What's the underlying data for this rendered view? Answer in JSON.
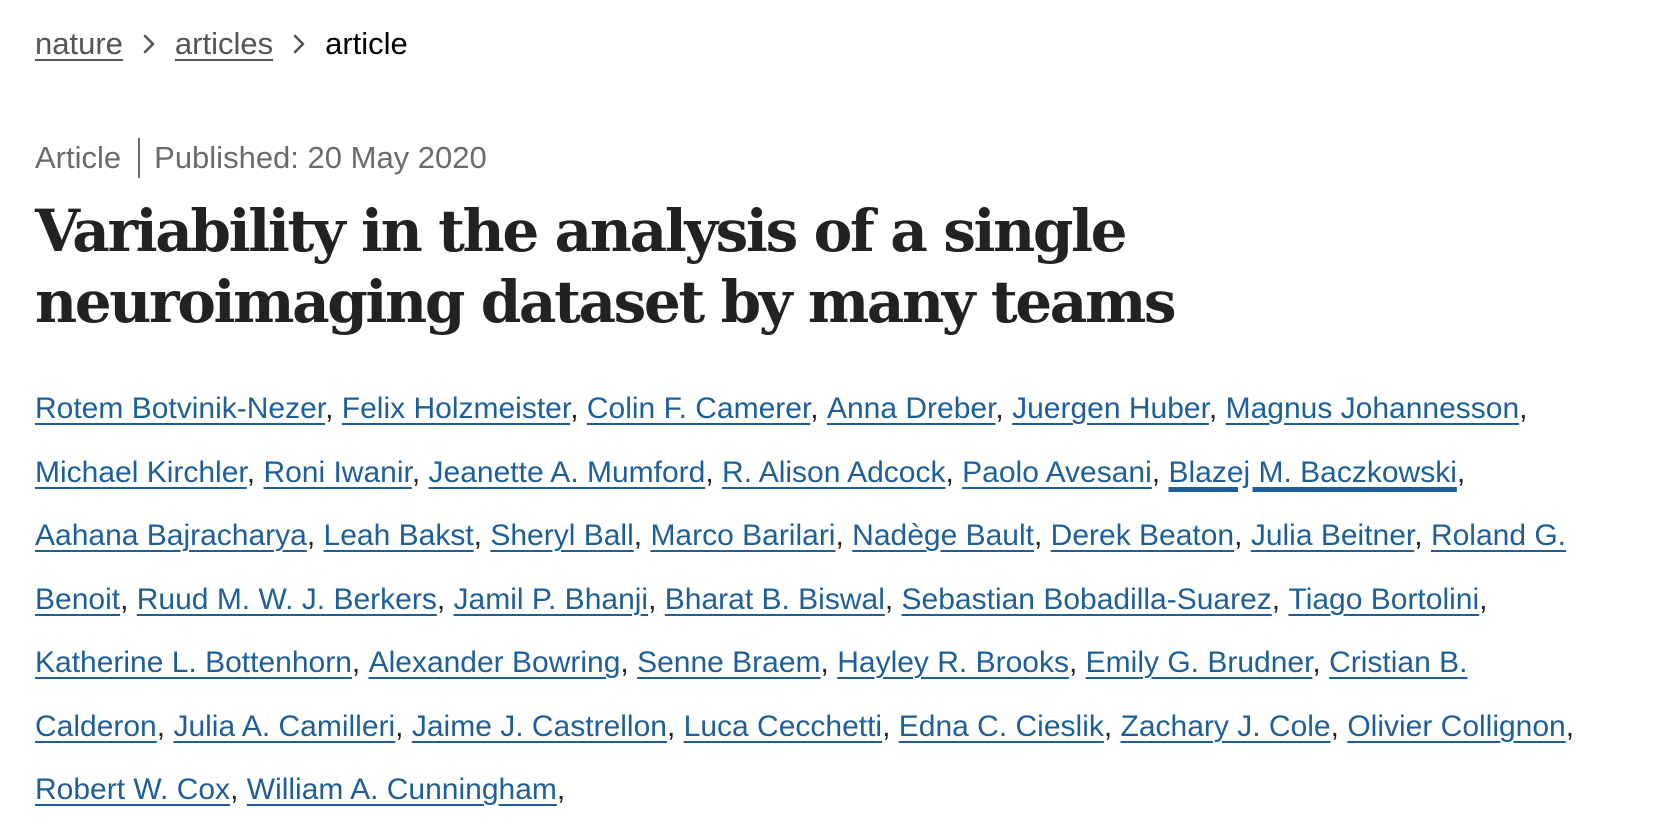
{
  "breadcrumb": {
    "items": [
      {
        "label": "nature",
        "link": true
      },
      {
        "label": "articles",
        "link": true
      },
      {
        "label": "article",
        "link": false
      }
    ],
    "separator_icon": "chevron-right-icon"
  },
  "meta": {
    "type": "Article",
    "published": "Published: 20 May 2020"
  },
  "article": {
    "title": "Variability in the analysis of a single neuroimaging dataset by many teams"
  },
  "authors": [
    "Rotem Botvinik-Nezer",
    "Felix Holzmeister",
    "Colin F. Camerer",
    "Anna Dreber",
    "Juergen Huber",
    "Magnus Johannesson",
    "Michael Kirchler",
    "Roni Iwanir",
    "Jeanette A. Mumford",
    "R. Alison Adcock",
    "Paolo Avesani",
    "Blazej M. Baczkowski",
    "Aahana Bajracharya",
    "Leah Bakst",
    "Sheryl Ball",
    "Marco Barilari",
    "Nadège Bault",
    "Derek Beaton",
    "Julia Beitner",
    "Roland G. Benoit",
    "Ruud M. W. J. Berkers",
    "Jamil P. Bhanji",
    "Bharat B. Biswal",
    "Sebastian Bobadilla-Suarez",
    "Tiago Bortolini",
    "Katherine L. Bottenhorn",
    "Alexander Bowring",
    "Senne Braem",
    "Hayley R. Brooks",
    "Emily G. Brudner",
    "Cristian B. Calderon",
    "Julia A. Camilleri",
    "Jaime J. Castrellon",
    "Luca Cecchetti",
    "Edna C. Cieslik",
    "Zachary J. Cole",
    "Olivier Collignon",
    "Robert W. Cox",
    "William A. Cunningham"
  ],
  "author_separator": ",",
  "focused_author_index": 11,
  "colors": {
    "link": "#1e5f99",
    "text": "#222222",
    "muted": "#6b6b6b",
    "breadcrumb_link": "#555555"
  }
}
